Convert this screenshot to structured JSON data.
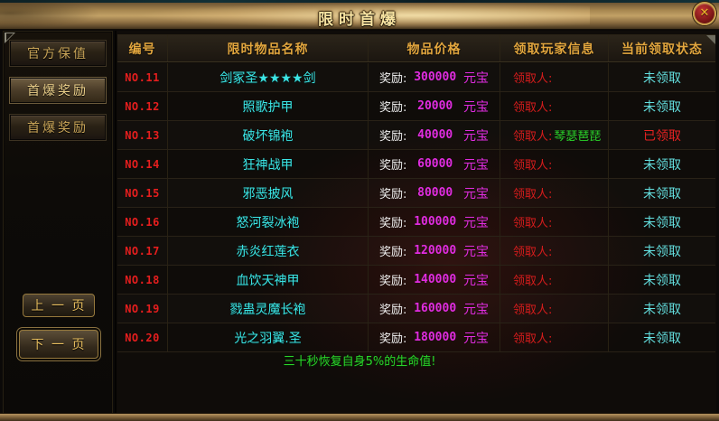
{
  "window": {
    "title": "限时首爆",
    "close_icon": "✕"
  },
  "sidebar": {
    "buttons": [
      {
        "label": "官方保值",
        "active": false
      },
      {
        "label": "首爆奖励",
        "active": true
      },
      {
        "label": "首爆奖励",
        "active": false
      }
    ],
    "prev_label": "上 一 页",
    "next_label": "下 一 页"
  },
  "table": {
    "headers": [
      "编号",
      "限时物品名称",
      "物品价格",
      "领取玩家信息",
      "当前领取状态"
    ],
    "price_prefix": "奖励:",
    "price_suffix": "元宝",
    "claim_prefix": "领取人:",
    "rows": [
      {
        "no": "NO.11",
        "item": "剑冢圣★★★★剑",
        "price": "300000",
        "claimer": "",
        "status": "未领取",
        "claimed": false
      },
      {
        "no": "NO.12",
        "item": "照歌护甲",
        "price": "20000",
        "claimer": "",
        "status": "未领取",
        "claimed": false
      },
      {
        "no": "NO.13",
        "item": "破坏锦袍",
        "price": "40000",
        "claimer": "琴瑟琶琵",
        "status": "已领取",
        "claimed": true
      },
      {
        "no": "NO.14",
        "item": "狂神战甲",
        "price": "60000",
        "claimer": "",
        "status": "未领取",
        "claimed": false
      },
      {
        "no": "NO.15",
        "item": "邪恶披风",
        "price": "80000",
        "claimer": "",
        "status": "未领取",
        "claimed": false
      },
      {
        "no": "NO.16",
        "item": "怒河裂冰袍",
        "price": "100000",
        "claimer": "",
        "status": "未领取",
        "claimed": false
      },
      {
        "no": "NO.17",
        "item": "赤炎红莲衣",
        "price": "120000",
        "claimer": "",
        "status": "未领取",
        "claimed": false
      },
      {
        "no": "NO.18",
        "item": "血饮天神甲",
        "price": "140000",
        "claimer": "",
        "status": "未领取",
        "claimed": false
      },
      {
        "no": "NO.19",
        "item": "戮蛊灵魔长袍",
        "price": "160000",
        "claimer": "",
        "status": "未领取",
        "claimed": false
      },
      {
        "no": "NO.20",
        "item": "光之羽翼.圣",
        "price": "180000",
        "claimer": "",
        "status": "未领取",
        "claimed": false
      }
    ],
    "footer_tip": "三十秒恢复自身5%的生命值!"
  },
  "colors": {
    "header_gold": "#e2a63e",
    "item_cyan": "#3ce4e4",
    "price_magenta": "#e02ce0",
    "number_red": "#e61e1e",
    "claimer_green": "#2ad42a",
    "status_unclaimed_cyan": "#63dede",
    "status_claimed_red": "#e62222",
    "tip_green": "#2bd32b",
    "bar_bronze": "#c2a166"
  }
}
